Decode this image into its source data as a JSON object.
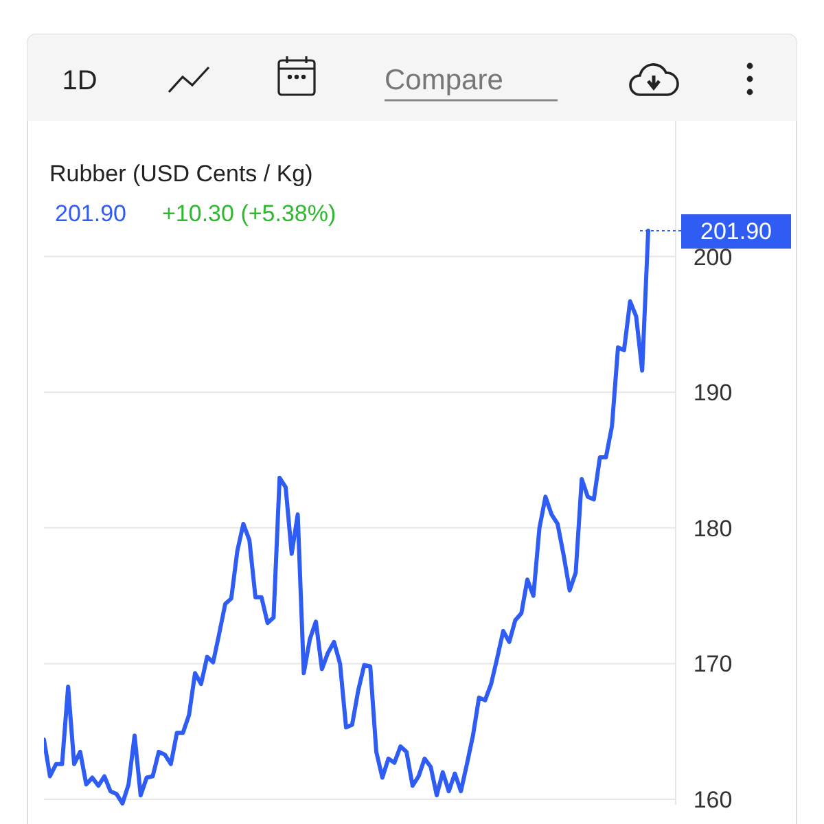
{
  "chart_data": {
    "type": "line",
    "title": "Rubber (USD Cents / Kg)",
    "annotations": [
      "1D",
      "Compare",
      "201.90",
      "+10.30 (+5.38%)"
    ],
    "categories": [
      null,
      null,
      null,
      null,
      null,
      null,
      null,
      null,
      null,
      null,
      null,
      null,
      null,
      null,
      null,
      null,
      null,
      null,
      null,
      null,
      null,
      null,
      null,
      null,
      null,
      null,
      null,
      null,
      null,
      null,
      null,
      null,
      null,
      null,
      null,
      null,
      null,
      null,
      null,
      null,
      null,
      null,
      null,
      null,
      null,
      null,
      null,
      null,
      null,
      null,
      null,
      null,
      null,
      null,
      null,
      null,
      null,
      null,
      null,
      null,
      null,
      null,
      null,
      null,
      null,
      null,
      null,
      null,
      null,
      null,
      null,
      null,
      null,
      null,
      null,
      null,
      null,
      null,
      null,
      null,
      null,
      null,
      null,
      null,
      null,
      null,
      null,
      null,
      null,
      null,
      null,
      null,
      null,
      null,
      null,
      null,
      null,
      null,
      null,
      null,
      null
    ],
    "series": [
      {
        "color": "#2f5cf2",
        "values": [
          164.4,
          161.7,
          162.6,
          162.6,
          168.3,
          162.6,
          163.5,
          161.1,
          161.6,
          161.0,
          161.7,
          160.6,
          160.4,
          159.7,
          161.1,
          164.7,
          160.3,
          161.6,
          161.7,
          163.5,
          163.3,
          162.6,
          164.9,
          164.9,
          166.2,
          169.3,
          168.5,
          170.5,
          170.1,
          172.2,
          174.4,
          174.8,
          178.3,
          180.3,
          179.1,
          174.9,
          174.9,
          173.0,
          173.4,
          183.7,
          183.0,
          178.1,
          181.0,
          169.3,
          171.8,
          173.1,
          169.6,
          170.8,
          171.6,
          170.0,
          165.3,
          165.5,
          168.0,
          169.9,
          169.8,
          163.5,
          161.6,
          163.0,
          162.7,
          163.9,
          163.5,
          161.0,
          161.7,
          163.0,
          162.4,
          160.3,
          162.0,
          160.6,
          161.9,
          160.6,
          162.6,
          164.7,
          167.5,
          167.3,
          168.5,
          170.4,
          172.4,
          171.6,
          173.2,
          173.7,
          176.2,
          175.0,
          180.0,
          182.3,
          181.0,
          180.3,
          178.0,
          175.4,
          176.7,
          183.6,
          182.3,
          182.1,
          185.2,
          185.2,
          187.5,
          193.3,
          193.1,
          196.7,
          195.6,
          191.6,
          201.9
        ]
      }
    ],
    "ylim": [
      159.6,
      210
    ],
    "yticks": [
      160,
      170,
      180,
      190,
      200
    ],
    "grid": "y",
    "marker": "none",
    "line_style": "solid",
    "ref_lines": [
      {
        "axis": "y",
        "value": 201.9,
        "label": "201.90",
        "color": "#2f5cf2",
        "line_style": "dotted"
      }
    ]
  }
}
